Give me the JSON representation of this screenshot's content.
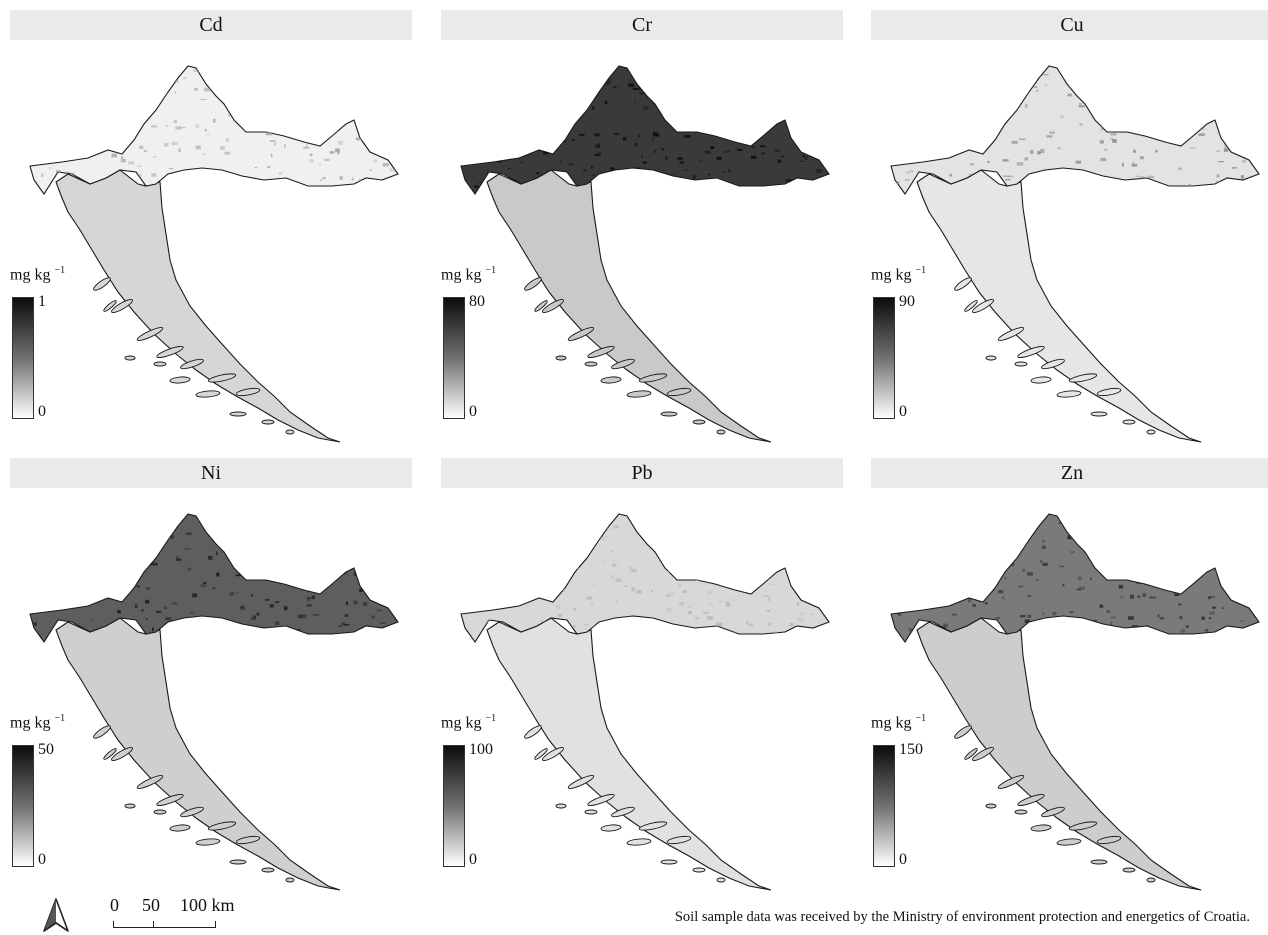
{
  "panels": [
    {
      "title": "Cd",
      "unit": "mg kg",
      "unit_exp": "−1",
      "max": "1",
      "min": "0",
      "north_fill": "#f0f0f0",
      "north_dots": "#a8a8a8",
      "south_fill": "#d6d6d6"
    },
    {
      "title": "Cr",
      "unit": "mg kg",
      "unit_exp": "−1",
      "max": "80",
      "min": "0",
      "north_fill": "#3a3a3a",
      "north_dots": "#0e0e0e",
      "south_fill": "#c9c9c9"
    },
    {
      "title": "Cu",
      "unit": "mg kg",
      "unit_exp": "−1",
      "max": "90",
      "min": "0",
      "north_fill": "#e3e3e3",
      "north_dots": "#8f8f8f",
      "south_fill": "#e6e6e6"
    },
    {
      "title": "Ni",
      "unit": "mg kg",
      "unit_exp": "−1",
      "max": "50",
      "min": "0",
      "north_fill": "#5e5e5e",
      "north_dots": "#1a1a1a",
      "south_fill": "#cfcfcf"
    },
    {
      "title": "Pb",
      "unit": "mg kg",
      "unit_exp": "−1",
      "max": "100",
      "min": "0",
      "north_fill": "#d8d8d8",
      "north_dots": "#b8b8b8",
      "south_fill": "#e1e1e1"
    },
    {
      "title": "Zn",
      "unit": "mg kg",
      "unit_exp": "−1",
      "max": "150",
      "min": "0",
      "north_fill": "#7a7a7a",
      "north_dots": "#2e2e2e",
      "south_fill": "#cdcdcd"
    }
  ],
  "scalebar": {
    "l0": "0",
    "l1": "50",
    "l2": "100 km"
  },
  "north_icon": "north-arrow-icon",
  "source_text": "Soil sample data was received by the Ministry of environment protection and energetics of Croatia."
}
